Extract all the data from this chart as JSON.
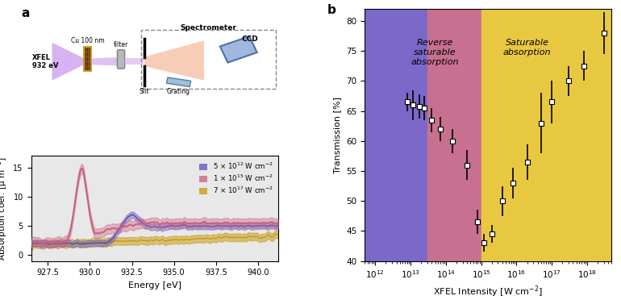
{
  "fig_width": 7.7,
  "fig_height": 3.72,
  "dpi": 100,
  "panel_b": {
    "bg_purple": {
      "color": "#7B68C8",
      "xmin": 500000000000.0,
      "xmax": 30000000000000.0
    },
    "bg_pink": {
      "color": "#C87090",
      "xmin": 30000000000000.0,
      "xmax": 1000000000000000.0
    },
    "bg_yellow": {
      "color": "#E8C840",
      "xmin": 1000000000000000.0,
      "xmax": 5e+18
    },
    "label_reverse": "Reverse\nsaturable\nabsorption",
    "label_saturable": "Saturable\nabsorption",
    "xlabel": "XFEL Intensity [W cm$^{-2}$]",
    "ylabel": "Transmission [%]",
    "xlim": [
      500000000000.0,
      5e+18
    ],
    "ylim": [
      40,
      82
    ],
    "yticks": [
      40,
      45,
      50,
      55,
      60,
      65,
      70,
      75,
      80
    ],
    "data_x": [
      8000000000000.0,
      12000000000000.0,
      18000000000000.0,
      25000000000000.0,
      40000000000000.0,
      70000000000000.0,
      150000000000000.0,
      400000000000000.0,
      800000000000000.0,
      1200000000000000.0,
      2000000000000000.0,
      4000000000000000.0,
      8000000000000000.0,
      2e+16,
      5e+16,
      1e+17,
      3e+17,
      8e+17
    ],
    "data_y": [
      66.5,
      66.0,
      65.8,
      65.5,
      63.5,
      62.0,
      60.0,
      56.0,
      46.5,
      43.0,
      44.5,
      50.0,
      53.0,
      56.5,
      63.0,
      66.5,
      70.0,
      72.5
    ],
    "data_yerr": [
      1.5,
      2.5,
      2.0,
      2.0,
      2.0,
      2.0,
      2.0,
      2.5,
      2.0,
      1.5,
      1.5,
      2.5,
      2.5,
      3.0,
      5.0,
      3.5,
      2.5,
      2.5
    ],
    "last_point_x": 3e+18,
    "last_point_y": 78.0,
    "last_point_yerr": 3.5
  },
  "panel_c": {
    "xlabel": "Energy [eV]",
    "ylabel": "Absorption coef. [μ m$^{-1}$]",
    "xlim": [
      926.5,
      941.2
    ],
    "ylim": [
      -1,
      17
    ],
    "yticks": [
      0,
      5,
      10,
      15
    ],
    "xticks": [
      927.5,
      930.0,
      932.5,
      935.0,
      937.5,
      940.0
    ],
    "bg_color": "#E8E8E8",
    "color_purple": "#6050B8",
    "color_pink": "#C86080",
    "color_yellow": "#C8980A",
    "fill_alpha_purple": 0.4,
    "fill_alpha_pink": 0.4,
    "fill_alpha_yellow": 0.5,
    "legend_labels": [
      "5 × 10$^{12}$ W cm$^{-2}$",
      "1 × 10$^{15}$ W cm$^{-2}$",
      "7 × 10$^{17}$ W cm$^{-2}$"
    ]
  }
}
